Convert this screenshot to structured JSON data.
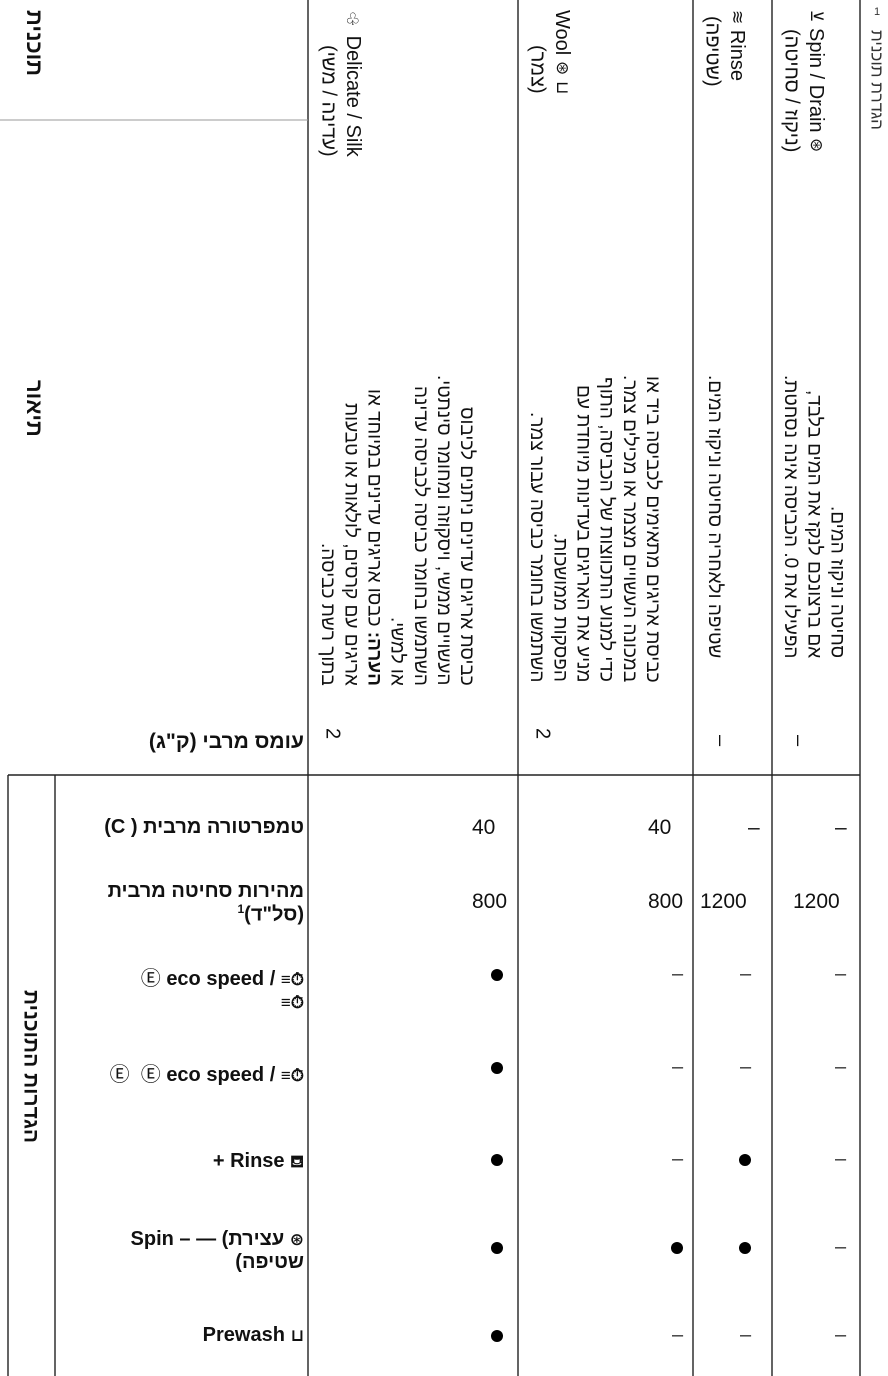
{
  "header": {
    "program": "תוכנית",
    "description": "תיאור",
    "max_load": "עומס מרבי (ק\"ג)",
    "settings_group": "הגדרות התוכנית",
    "max_temp": "טמפרטורה מרבית ( C)",
    "max_spin_line1": "מהירות סחיטה מרבית",
    "max_spin_line2": "(סל\"ד)",
    "max_spin_sup": "1",
    "speed_eco_1a": "eco speed / ",
    "speed_eco_2": "eco speed / ",
    "rinse_plus": "+ Rinse",
    "spin_line1": "Spin – — (עצירת",
    "spin_line2": "שטיפה)",
    "prewash": "Prewash"
  },
  "rows": [
    {
      "program_en": "Delicate / Silk",
      "program_he": "(עדינה / משי)",
      "description": [
        "כביסת אריגים עדינים ניתנים לכיבוס",
        "העשויים ממשי, ויסקוזה ומחומר סינתטי.",
        "השתמשו בחומר כביסה לכביסה עדינה",
        "או למשי."
      ],
      "note_label": "הערה:",
      "note": [
        "כבסו אריגים עדינים במיוחד או",
        "אריגים עם קרסים, לולאות או טבעות",
        "בתוך רשת כביסה."
      ],
      "max_load": "2",
      "max_temp": "40",
      "max_spin": "800"
    },
    {
      "program_en": "Wool",
      "program_he": "(צמר)",
      "description": [
        "כביסת אריגים מתאימים לכביסה ביד או",
        "במכונה העשויים מצמר או מכילים צמר.",
        "כדי למנוע התכווצות של הכביסה, התוף",
        "מניע את האריגים בעדינות מיוחדת עם",
        "הפסקות ממושכות.",
        "השתמשו בחומר כביסה עבור צמר."
      ],
      "max_load": "2",
      "max_temp": "40",
      "max_spin": "800"
    },
    {
      "program_en": "Rinse",
      "program_he": "(שטיפה)",
      "description": [
        "שטיפה ולאחריה סחיטה וניקוז המים."
      ],
      "max_load": "–",
      "max_temp": "–",
      "max_spin": "1200"
    },
    {
      "program_en": "Spin / Drain",
      "program_he": "(ניקוז / סחיטה)",
      "description": [
        "סחיטה וניקוז המים.",
        "אם ברצונכם לנקז את המים בלבד,",
        "הפעילו את 0. הכביסה אינה נסחטת."
      ],
      "max_load": "–",
      "max_temp": "–",
      "max_spin": "1200"
    }
  ],
  "option_marks": {
    "speed_eco_1": [
      "●",
      "–",
      "–",
      "–"
    ],
    "speed_eco_2": [
      "●",
      "–",
      "–",
      "–"
    ],
    "rinse_plus": [
      "●",
      "–",
      "●",
      "–"
    ],
    "spin": [
      "●",
      "●",
      "●",
      "–"
    ],
    "prewash": [
      "●",
      "–",
      "–",
      "–"
    ]
  },
  "sidebar": {
    "label": "הגדרת תוכנית",
    "page_ref": "1"
  }
}
